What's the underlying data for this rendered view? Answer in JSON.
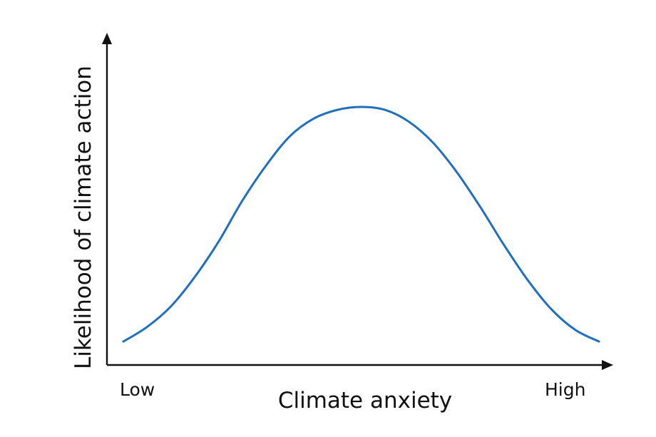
{
  "chart_data": {
    "type": "line",
    "title": "",
    "xlabel": "Climate anxiety",
    "ylabel": "Likelihood of climate action",
    "x_tick_labels": [
      "Low",
      "High"
    ],
    "xlim": [
      0,
      1
    ],
    "ylim": [
      0,
      1
    ],
    "grid": false,
    "legend": "none",
    "series": [
      {
        "color": "#1f6fbd",
        "x": [
          0.0,
          0.05,
          0.1,
          0.15,
          0.2,
          0.25,
          0.3,
          0.35,
          0.4,
          0.45,
          0.5,
          0.55,
          0.6,
          0.65,
          0.7,
          0.75,
          0.8,
          0.85,
          0.9,
          0.95,
          1.0
        ],
        "y": [
          0.08,
          0.13,
          0.2,
          0.3,
          0.42,
          0.56,
          0.68,
          0.78,
          0.84,
          0.87,
          0.88,
          0.87,
          0.83,
          0.76,
          0.66,
          0.54,
          0.41,
          0.29,
          0.19,
          0.12,
          0.08
        ]
      }
    ]
  }
}
